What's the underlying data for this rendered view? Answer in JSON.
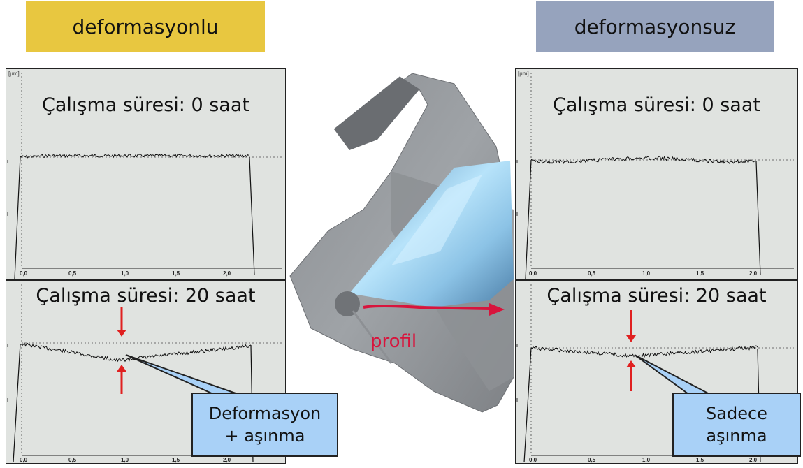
{
  "header": {
    "left_label": "deformasyonlu",
    "right_label": "deformasyonsuz",
    "left_color": "#e8c740",
    "right_color": "#96a3bd"
  },
  "panels": {
    "unit_label": "[µm]",
    "x_ticks": [
      "0,0",
      "0,5",
      "1,0",
      "1,5",
      "2,0"
    ],
    "left_top_title": "Çalışma süresi: 0 saat",
    "left_bottom_title": "Çalışma süresi: 20 saat",
    "right_top_title": "Çalışma süresi: 0 saat",
    "right_bottom_title": "Çalışma süresi: 20 saat"
  },
  "callouts": {
    "left_line1": "Deformasyon",
    "left_line2": "+ aşınma",
    "right_line1": "Sadece",
    "right_line2": "aşınma",
    "fill_color": "#a9d1f7"
  },
  "center": {
    "profile_label": "profil",
    "profile_color": "#d8143c"
  }
}
